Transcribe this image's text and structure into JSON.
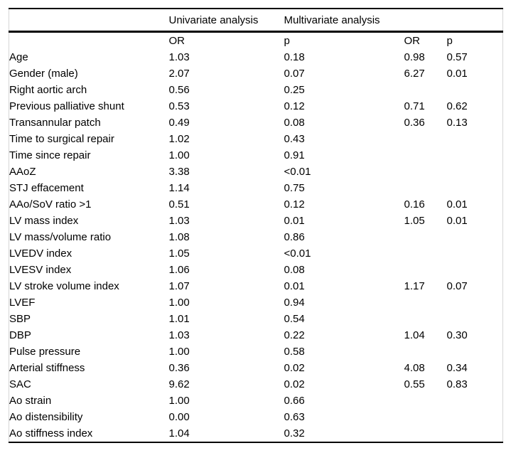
{
  "table": {
    "group_header": {
      "univariate": "Univariate analysis",
      "multivariate": "Multivariate analysis"
    },
    "columns": {
      "uni_or": "OR",
      "uni_p": "p",
      "mv_or": "OR",
      "mv_p": "p"
    },
    "rows": [
      {
        "label": "Age",
        "uni_or": "1.03",
        "uni_p": "0.18",
        "mv_or": "0.98",
        "mv_p": "0.57"
      },
      {
        "label": "Gender (male)",
        "uni_or": "2.07",
        "uni_p": "0.07",
        "mv_or": "6.27",
        "mv_p": "0.01"
      },
      {
        "label": "Right aortic arch",
        "uni_or": "0.56",
        "uni_p": "0.25",
        "mv_or": "",
        "mv_p": ""
      },
      {
        "label": "Previous palliative shunt",
        "uni_or": "0.53",
        "uni_p": "0.12",
        "mv_or": "0.71",
        "mv_p": "0.62"
      },
      {
        "label": "Transannular patch",
        "uni_or": "0.49",
        "uni_p": "0.08",
        "mv_or": "0.36",
        "mv_p": "0.13"
      },
      {
        "label": "Time to surgical repair",
        "uni_or": "1.02",
        "uni_p": "0.43",
        "mv_or": "",
        "mv_p": ""
      },
      {
        "label": "Time since repair",
        "uni_or": "1.00",
        "uni_p": "0.91",
        "mv_or": "",
        "mv_p": ""
      },
      {
        "label": "AAoZ",
        "uni_or": "3.38",
        "uni_p": "<0.01",
        "mv_or": "",
        "mv_p": ""
      },
      {
        "label": "STJ effacement",
        "uni_or": "1.14",
        "uni_p": "0.75",
        "mv_or": "",
        "mv_p": ""
      },
      {
        "label": "AAo/SoV ratio >1",
        "uni_or": "0.51",
        "uni_p": "0.12",
        "mv_or": "0.16",
        "mv_p": "0.01"
      },
      {
        "label": "LV mass index",
        "uni_or": "1.03",
        "uni_p": "0.01",
        "mv_or": "1.05",
        "mv_p": "0.01"
      },
      {
        "label": "LV mass/volume ratio",
        "uni_or": "1.08",
        "uni_p": "0.86",
        "mv_or": "",
        "mv_p": ""
      },
      {
        "label": "LVEDV index",
        "uni_or": "1.05",
        "uni_p": "<0.01",
        "mv_or": "",
        "mv_p": ""
      },
      {
        "label": "LVESV index",
        "uni_or": "1.06",
        "uni_p": "0.08",
        "mv_or": "",
        "mv_p": ""
      },
      {
        "label": "LV stroke volume index",
        "uni_or": "1.07",
        "uni_p": "0.01",
        "mv_or": "1.17",
        "mv_p": "0.07"
      },
      {
        "label": "LVEF",
        "uni_or": "1.00",
        "uni_p": "0.94",
        "mv_or": "",
        "mv_p": ""
      },
      {
        "label": "SBP",
        "uni_or": "1.01",
        "uni_p": "0.54",
        "mv_or": "",
        "mv_p": ""
      },
      {
        "label": "DBP",
        "uni_or": "1.03",
        "uni_p": "0.22",
        "mv_or": "1.04",
        "mv_p": "0.30"
      },
      {
        "label": "Pulse pressure",
        "uni_or": "1.00",
        "uni_p": "0.58",
        "mv_or": "",
        "mv_p": ""
      },
      {
        "label": "Arterial stiffness",
        "uni_or": "0.36",
        "uni_p": "0.02",
        "mv_or": "4.08",
        "mv_p": "0.34"
      },
      {
        "label": "SAC",
        "uni_or": "9.62",
        "uni_p": "0.02",
        "mv_or": "0.55",
        "mv_p": "0.83"
      },
      {
        "label": "Ao strain",
        "uni_or": "1.00",
        "uni_p": "0.66",
        "mv_or": "",
        "mv_p": ""
      },
      {
        "label": "Ao distensibility",
        "uni_or": "0.00",
        "uni_p": "0.63",
        "mv_or": "",
        "mv_p": ""
      },
      {
        "label": "Ao stiffness index",
        "uni_or": "1.04",
        "uni_p": "0.32",
        "mv_or": "",
        "mv_p": ""
      }
    ]
  }
}
